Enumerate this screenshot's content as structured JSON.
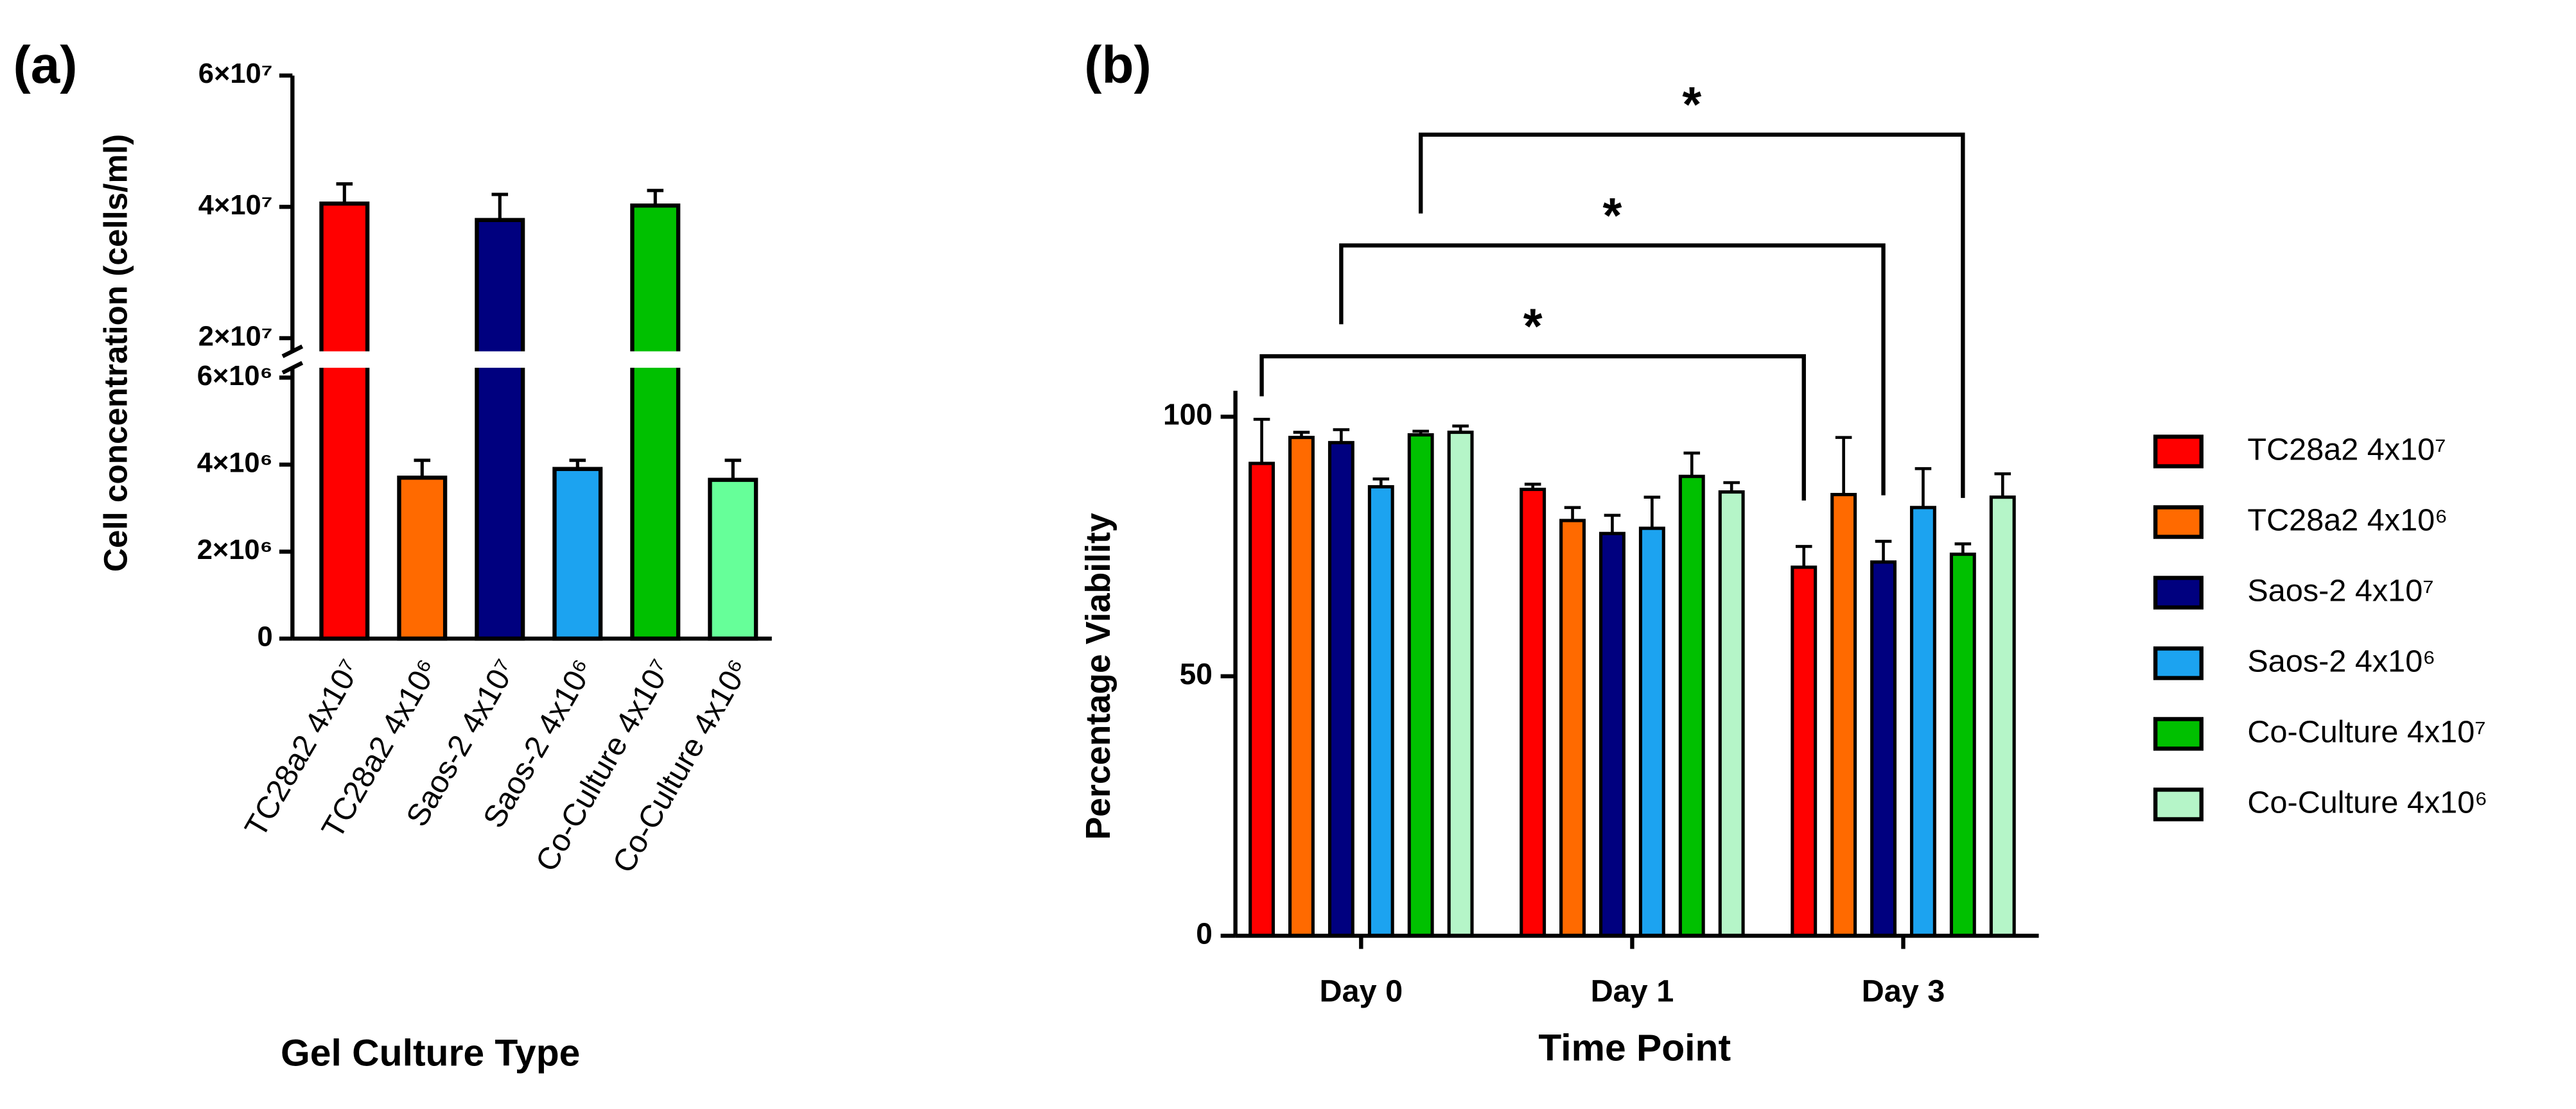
{
  "chart_data": [
    {
      "type": "broken_bar",
      "panel": "(a)",
      "xlabel": "Gel Culture Type",
      "ylabel": "Cell concentration (cells/ml)",
      "categories": [
        "TC28a2 4x10⁷",
        "TC28a2 4x10⁶",
        "Saos-2 4x10⁷",
        "Saos-2 4x10⁶",
        "Co-Culture 4x10⁷",
        "Co-Culture 4x10⁶"
      ],
      "values": [
        40500000,
        3700000,
        38000000,
        3900000,
        40200000,
        3650000
      ],
      "errors": [
        3000000,
        400000,
        3900000,
        200000,
        2300000,
        450000
      ],
      "colors": [
        "#ff0000",
        "#ff6a00",
        "#00007f",
        "#1ca3f0",
        "#00c000",
        "#66ff99"
      ],
      "ylim": [
        0,
        60000000
      ],
      "axis_break": [
        6000000,
        20000000
      ],
      "yticks": [
        0,
        {
          "value": 2000000,
          "label": "2×10⁶"
        },
        {
          "value": 4000000,
          "label": "4×10⁶"
        },
        {
          "value": 6000000,
          "label": "6×10⁶"
        },
        {
          "value": 20000000,
          "label": "2×10⁷"
        },
        {
          "value": 40000000,
          "label": "4×10⁷"
        },
        {
          "value": 60000000,
          "label": "6×10⁷"
        }
      ]
    },
    {
      "type": "grouped_bar",
      "panel": "(b)",
      "xlabel": "Time Point",
      "ylabel": "Percentage Viability",
      "categories": [
        "Day 0",
        "Day 1",
        "Day 3"
      ],
      "series": [
        {
          "name": "TC28a2 4x10⁷",
          "color": "#ff0000",
          "values": [
            91,
            86,
            71
          ],
          "errors": [
            8.5,
            1,
            4
          ]
        },
        {
          "name": "TC28a2 4x10⁶",
          "color": "#ff6a00",
          "values": [
            96,
            80,
            85
          ],
          "errors": [
            1,
            2.5,
            11
          ]
        },
        {
          "name": "Saos-2 4x10⁷",
          "color": "#00007f",
          "values": [
            95,
            77.5,
            72
          ],
          "errors": [
            2.5,
            3.5,
            4
          ]
        },
        {
          "name": "Saos-2 4x10⁶",
          "color": "#1ca3f0",
          "values": [
            86.5,
            78.5,
            82.5
          ],
          "errors": [
            1.5,
            6,
            7.5
          ]
        },
        {
          "name": "Co-Culture 4x10⁷",
          "color": "#00c000",
          "values": [
            96.5,
            88.5,
            73.5
          ],
          "errors": [
            0.7,
            4.5,
            2
          ]
        },
        {
          "name": "Co-Culture 4x10⁶",
          "color": "#b5f5c8",
          "values": [
            97,
            85.5,
            84.5
          ],
          "errors": [
            1.2,
            1.8,
            4.5
          ]
        }
      ],
      "ylim": [
        0,
        105
      ],
      "yticks": [
        0,
        50,
        100
      ],
      "legend": "right",
      "significance": [
        {
          "series": "TC28a2 4x10⁷",
          "from": "Day 0",
          "to": "Day 3",
          "label": "*"
        },
        {
          "series": "Saos-2 4x10⁷",
          "from": "Day 0",
          "to": "Day 3",
          "label": "*"
        },
        {
          "series": "Co-Culture 4x10⁷",
          "from": "Day 0",
          "to": "Day 3",
          "label": "*"
        }
      ]
    }
  ]
}
